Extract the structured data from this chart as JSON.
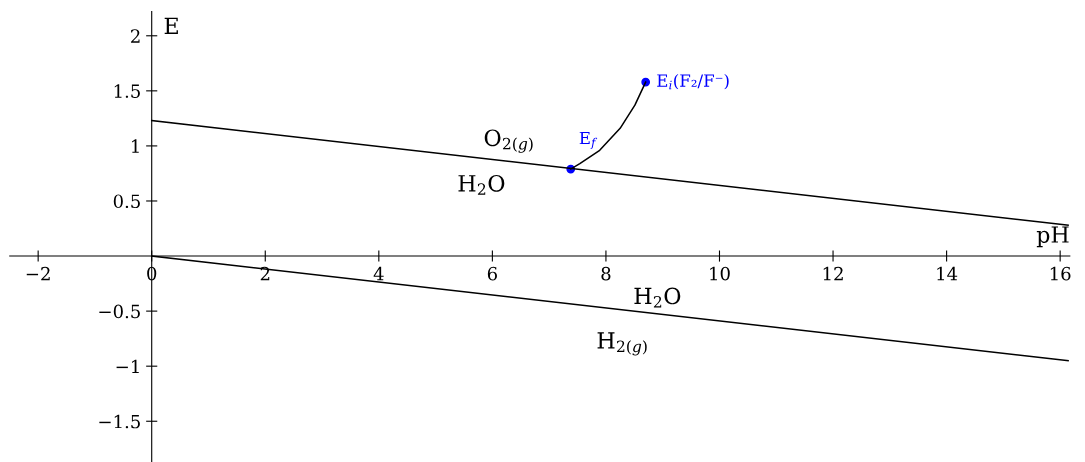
{
  "chart_data": {
    "type": "line",
    "xlabel": "pH",
    "ylabel": "E",
    "xlim": [
      -2.5,
      16.17
    ],
    "ylim": [
      -1.87,
      2.22
    ],
    "xticks": [
      {
        "value": -2,
        "label": "−2"
      },
      0,
      2,
      4,
      6,
      8,
      10,
      12,
      14,
      16
    ],
    "yticks": [
      {
        "value": -1.5,
        "label": "−1.5"
      },
      {
        "value": -1,
        "label": "−1"
      },
      {
        "value": -0.5,
        "label": "−0.5"
      },
      0.5,
      1,
      1.5,
      2
    ],
    "grid": false,
    "legend": false,
    "marker": "none",
    "line_style": "solid",
    "series": [
      {
        "color": "#000000",
        "x": [
          0,
          16.14
        ],
        "values": [
          1.23,
          0.28
        ]
      },
      {
        "color": "#000000",
        "x": [
          0,
          16.14
        ],
        "values": [
          0,
          -0.95
        ]
      },
      {
        "color": "#000000",
        "x": [
          7.38,
          7.54,
          7.89,
          8.25,
          8.51,
          8.7
        ],
        "values": [
          0.79,
          0.84,
          0.96,
          1.16,
          1.37,
          1.58
        ]
      },
      {
        "type": "scatter",
        "name": "E$_{f}$",
        "color": "#0000ff",
        "marker": "circle",
        "x": [
          7.38
        ],
        "values": [
          0.79
        ]
      },
      {
        "type": "scatter",
        "name": "E$_{i}$(F₂/F⁻)",
        "color": "#0000ff",
        "marker": "circle",
        "x": [
          8.7
        ],
        "values": [
          1.58
        ]
      }
    ],
    "annotations": [
      "O$_{2(g)}$",
      "H$_{2}$O",
      "H$_{2}$O",
      "H$_{2(g)}$"
    ]
  }
}
